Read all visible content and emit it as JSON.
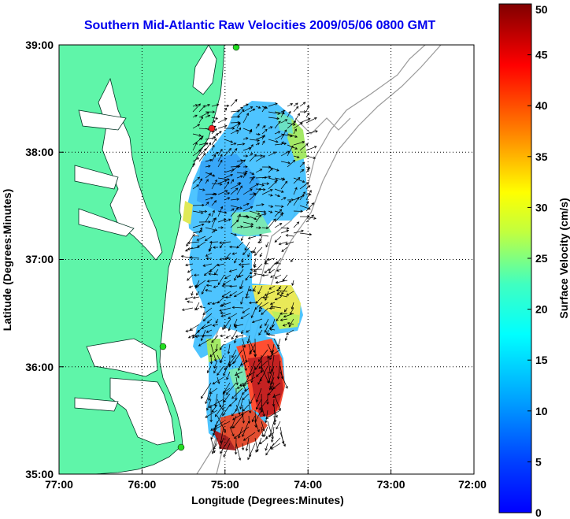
{
  "title": "Southern Mid-Atlantic Raw Velocities 2009/05/06 0800 GMT",
  "xaxis": {
    "label": "Longitude (Degrees:Minutes)",
    "ticks": [
      "77:00",
      "76:00",
      "75:00",
      "74:00",
      "73:00",
      "72:00"
    ],
    "range": [
      -77,
      -72
    ]
  },
  "yaxis": {
    "label": "Latitude (Degrees:Minutes)",
    "ticks": [
      "35:00",
      "36:00",
      "37:00",
      "38:00",
      "39:00"
    ],
    "range": [
      35,
      39
    ]
  },
  "colorbar": {
    "label": "Surface Velocity (cm/s)",
    "ticks": [
      "0",
      "5",
      "10",
      "15",
      "20",
      "25",
      "30",
      "35",
      "40",
      "45",
      "50"
    ],
    "range": [
      0,
      50
    ]
  },
  "colors": {
    "land": "#5ff5a9",
    "title": "#0000ee",
    "station_green": "#22dd22",
    "station_red": "#ee2222"
  },
  "grid": true
}
